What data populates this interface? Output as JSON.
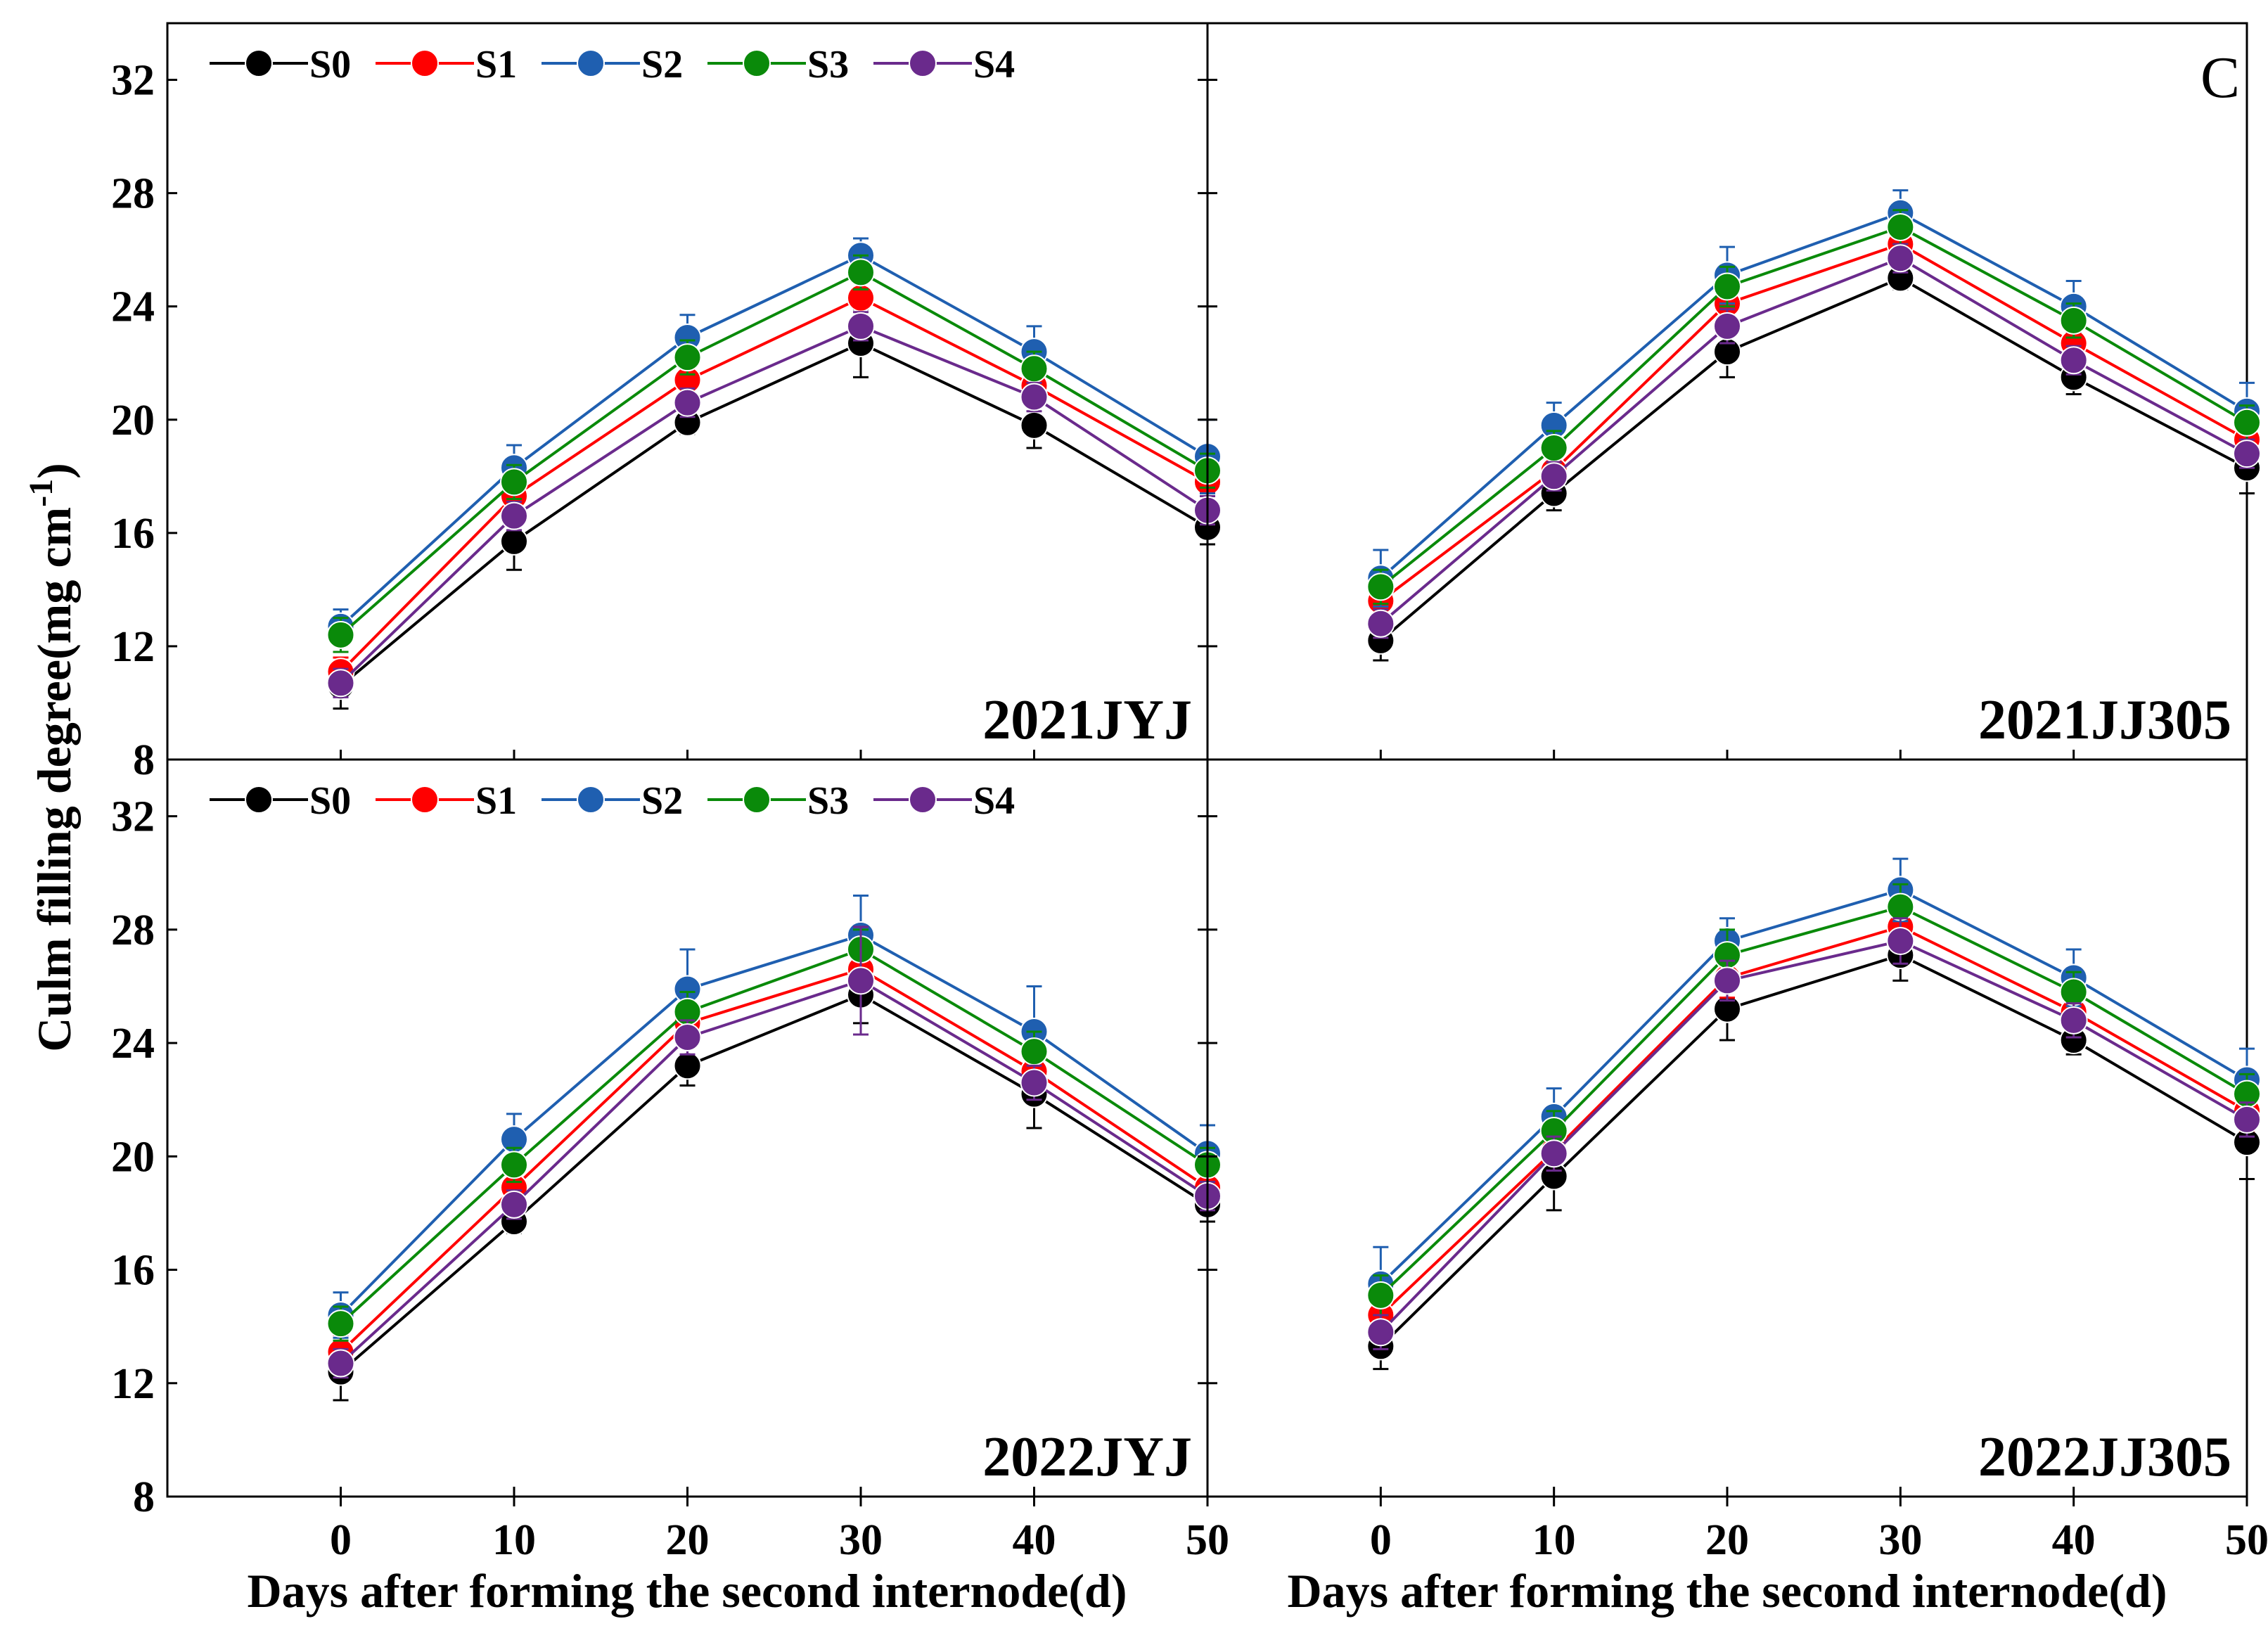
{
  "colors": {
    "S0": "#000000",
    "S1": "#ff0000",
    "S2": "#1f5fb0",
    "S3": "#0a8a0a",
    "S4": "#6a2a8c"
  },
  "legend_series": [
    "S0",
    "S1",
    "S2",
    "S3",
    "S4"
  ],
  "shared_x_label": "Days after forming the second internode(d)",
  "shared_y_label": "Culm filling degree(mg cm-1)",
  "corner_letter": "C",
  "chart_data": [
    {
      "type": "line",
      "panel_label": "2021JYJ",
      "legend": true,
      "x": [
        0,
        10,
        20,
        30,
        40,
        50
      ],
      "xlabel": "Days after forming the second internode(d)",
      "ylabel": "Culm filling degree(mg cm-1)",
      "xticks": [
        0,
        10,
        20,
        30,
        40,
        50
      ],
      "yticks": [
        8,
        12,
        16,
        20,
        24,
        28,
        32
      ],
      "xlim": [
        -10,
        50
      ],
      "ylim": [
        8,
        34
      ],
      "series": [
        {
          "name": "S0",
          "values": [
            10.6,
            15.7,
            19.9,
            22.7,
            19.8,
            16.2
          ],
          "errors": [
            0.8,
            1.0,
            0.4,
            1.2,
            0.8,
            0.6
          ]
        },
        {
          "name": "S1",
          "values": [
            11.1,
            17.3,
            21.4,
            24.3,
            21.2,
            17.8
          ],
          "errors": [
            0.5,
            0.6,
            0.5,
            0.7,
            0.6,
            0.5
          ]
        },
        {
          "name": "S2",
          "values": [
            12.7,
            18.3,
            22.9,
            25.8,
            22.4,
            18.7
          ],
          "errors": [
            0.6,
            0.8,
            0.8,
            0.6,
            0.9,
            1.3
          ]
        },
        {
          "name": "S3",
          "values": [
            12.4,
            17.8,
            22.2,
            25.2,
            21.8,
            18.2
          ],
          "errors": [
            0.6,
            0.6,
            0.6,
            0.6,
            0.6,
            0.6
          ]
        },
        {
          "name": "S4",
          "values": [
            10.7,
            16.6,
            20.6,
            23.3,
            20.8,
            16.8
          ],
          "errors": [
            0.5,
            0.5,
            0.5,
            0.5,
            0.5,
            0.5
          ]
        }
      ]
    },
    {
      "type": "line",
      "panel_label": "2021JJ305",
      "legend": false,
      "x": [
        0,
        10,
        20,
        30,
        40,
        50
      ],
      "xlabel": "Days after forming the second internode(d)",
      "ylabel": "Culm filling degree(mg cm-1)",
      "xticks": [
        0,
        10,
        20,
        30,
        40,
        50
      ],
      "yticks": [
        8,
        12,
        16,
        20,
        24,
        28,
        32
      ],
      "xlim": [
        -10,
        50
      ],
      "ylim": [
        8,
        34
      ],
      "series": [
        {
          "name": "S0",
          "values": [
            12.2,
            17.4,
            22.4,
            25.0,
            21.5,
            18.3
          ],
          "errors": [
            0.7,
            0.6,
            0.9,
            0.4,
            0.6,
            0.9
          ]
        },
        {
          "name": "S1",
          "values": [
            13.6,
            18.2,
            24.1,
            26.2,
            22.7,
            19.3
          ],
          "errors": [
            0.5,
            0.5,
            0.6,
            0.5,
            0.6,
            0.6
          ]
        },
        {
          "name": "S2",
          "values": [
            14.4,
            19.8,
            25.1,
            27.3,
            24.0,
            20.3
          ],
          "errors": [
            1.0,
            0.8,
            1.0,
            0.8,
            0.9,
            1.0
          ]
        },
        {
          "name": "S3",
          "values": [
            14.1,
            19.0,
            24.7,
            26.8,
            23.5,
            19.9
          ],
          "errors": [
            0.6,
            0.6,
            0.7,
            0.6,
            0.6,
            0.6
          ]
        },
        {
          "name": "S4",
          "values": [
            12.8,
            18.0,
            23.3,
            25.7,
            22.1,
            18.8
          ],
          "errors": [
            0.5,
            0.5,
            0.6,
            0.5,
            0.5,
            0.5
          ]
        }
      ]
    },
    {
      "type": "line",
      "panel_label": "2022JYJ",
      "legend": true,
      "x": [
        0,
        10,
        20,
        30,
        40,
        50
      ],
      "xlabel": "Days after forming the second internode(d)",
      "ylabel": "Culm filling degree(mg cm-1)",
      "xticks": [
        0,
        10,
        20,
        30,
        40,
        50
      ],
      "yticks": [
        8,
        12,
        16,
        20,
        24,
        28,
        32
      ],
      "xlim": [
        -10,
        50
      ],
      "ylim": [
        8,
        34
      ],
      "series": [
        {
          "name": "S0",
          "values": [
            12.4,
            17.7,
            23.2,
            25.7,
            22.2,
            18.3
          ],
          "errors": [
            1.0,
            0.4,
            0.7,
            1.0,
            1.2,
            0.6
          ]
        },
        {
          "name": "S1",
          "values": [
            13.1,
            18.9,
            24.7,
            26.6,
            23.0,
            18.9
          ],
          "errors": [
            0.6,
            0.6,
            0.6,
            0.7,
            0.7,
            0.6
          ]
        },
        {
          "name": "S2",
          "values": [
            14.4,
            20.6,
            25.9,
            27.8,
            24.4,
            20.1
          ],
          "errors": [
            0.8,
            0.9,
            1.4,
            1.4,
            1.6,
            1.0
          ]
        },
        {
          "name": "S3",
          "values": [
            14.1,
            19.7,
            25.1,
            27.3,
            23.7,
            19.7
          ],
          "errors": [
            0.6,
            0.6,
            0.7,
            0.7,
            0.7,
            0.6
          ]
        },
        {
          "name": "S4",
          "values": [
            12.7,
            18.3,
            24.2,
            26.2,
            22.6,
            18.6
          ],
          "errors": [
            0.5,
            0.5,
            0.6,
            1.9,
            0.6,
            0.5
          ]
        }
      ]
    },
    {
      "type": "line",
      "panel_label": "2022JJ305",
      "legend": false,
      "x": [
        0,
        10,
        20,
        30,
        40,
        50
      ],
      "xlabel": "Days after forming the second internode(d)",
      "ylabel": "Culm filling degree(mg cm-1)",
      "xticks": [
        0,
        10,
        20,
        30,
        40,
        50
      ],
      "yticks": [
        8,
        12,
        16,
        20,
        24,
        28,
        32
      ],
      "xlim": [
        -10,
        50
      ],
      "ylim": [
        8,
        34
      ],
      "series": [
        {
          "name": "S0",
          "values": [
            13.3,
            19.3,
            25.2,
            27.1,
            24.1,
            20.5
          ],
          "errors": [
            0.8,
            1.2,
            1.1,
            0.9,
            0.5,
            1.3
          ]
        },
        {
          "name": "S1",
          "values": [
            14.4,
            20.2,
            26.3,
            28.1,
            25.1,
            21.6
          ],
          "errors": [
            0.7,
            0.7,
            0.7,
            0.7,
            0.6,
            0.7
          ]
        },
        {
          "name": "S2",
          "values": [
            15.5,
            21.4,
            27.6,
            29.4,
            26.3,
            22.7
          ],
          "errors": [
            1.3,
            1.0,
            0.8,
            1.1,
            1.0,
            1.1
          ]
        },
        {
          "name": "S3",
          "values": [
            15.1,
            20.9,
            27.1,
            28.8,
            25.8,
            22.2
          ],
          "errors": [
            0.7,
            0.7,
            0.9,
            0.8,
            0.7,
            0.7
          ]
        },
        {
          "name": "S4",
          "values": [
            13.8,
            20.1,
            26.2,
            27.6,
            24.8,
            21.3
          ],
          "errors": [
            0.6,
            0.6,
            0.7,
            0.8,
            0.6,
            0.6
          ]
        }
      ]
    }
  ]
}
